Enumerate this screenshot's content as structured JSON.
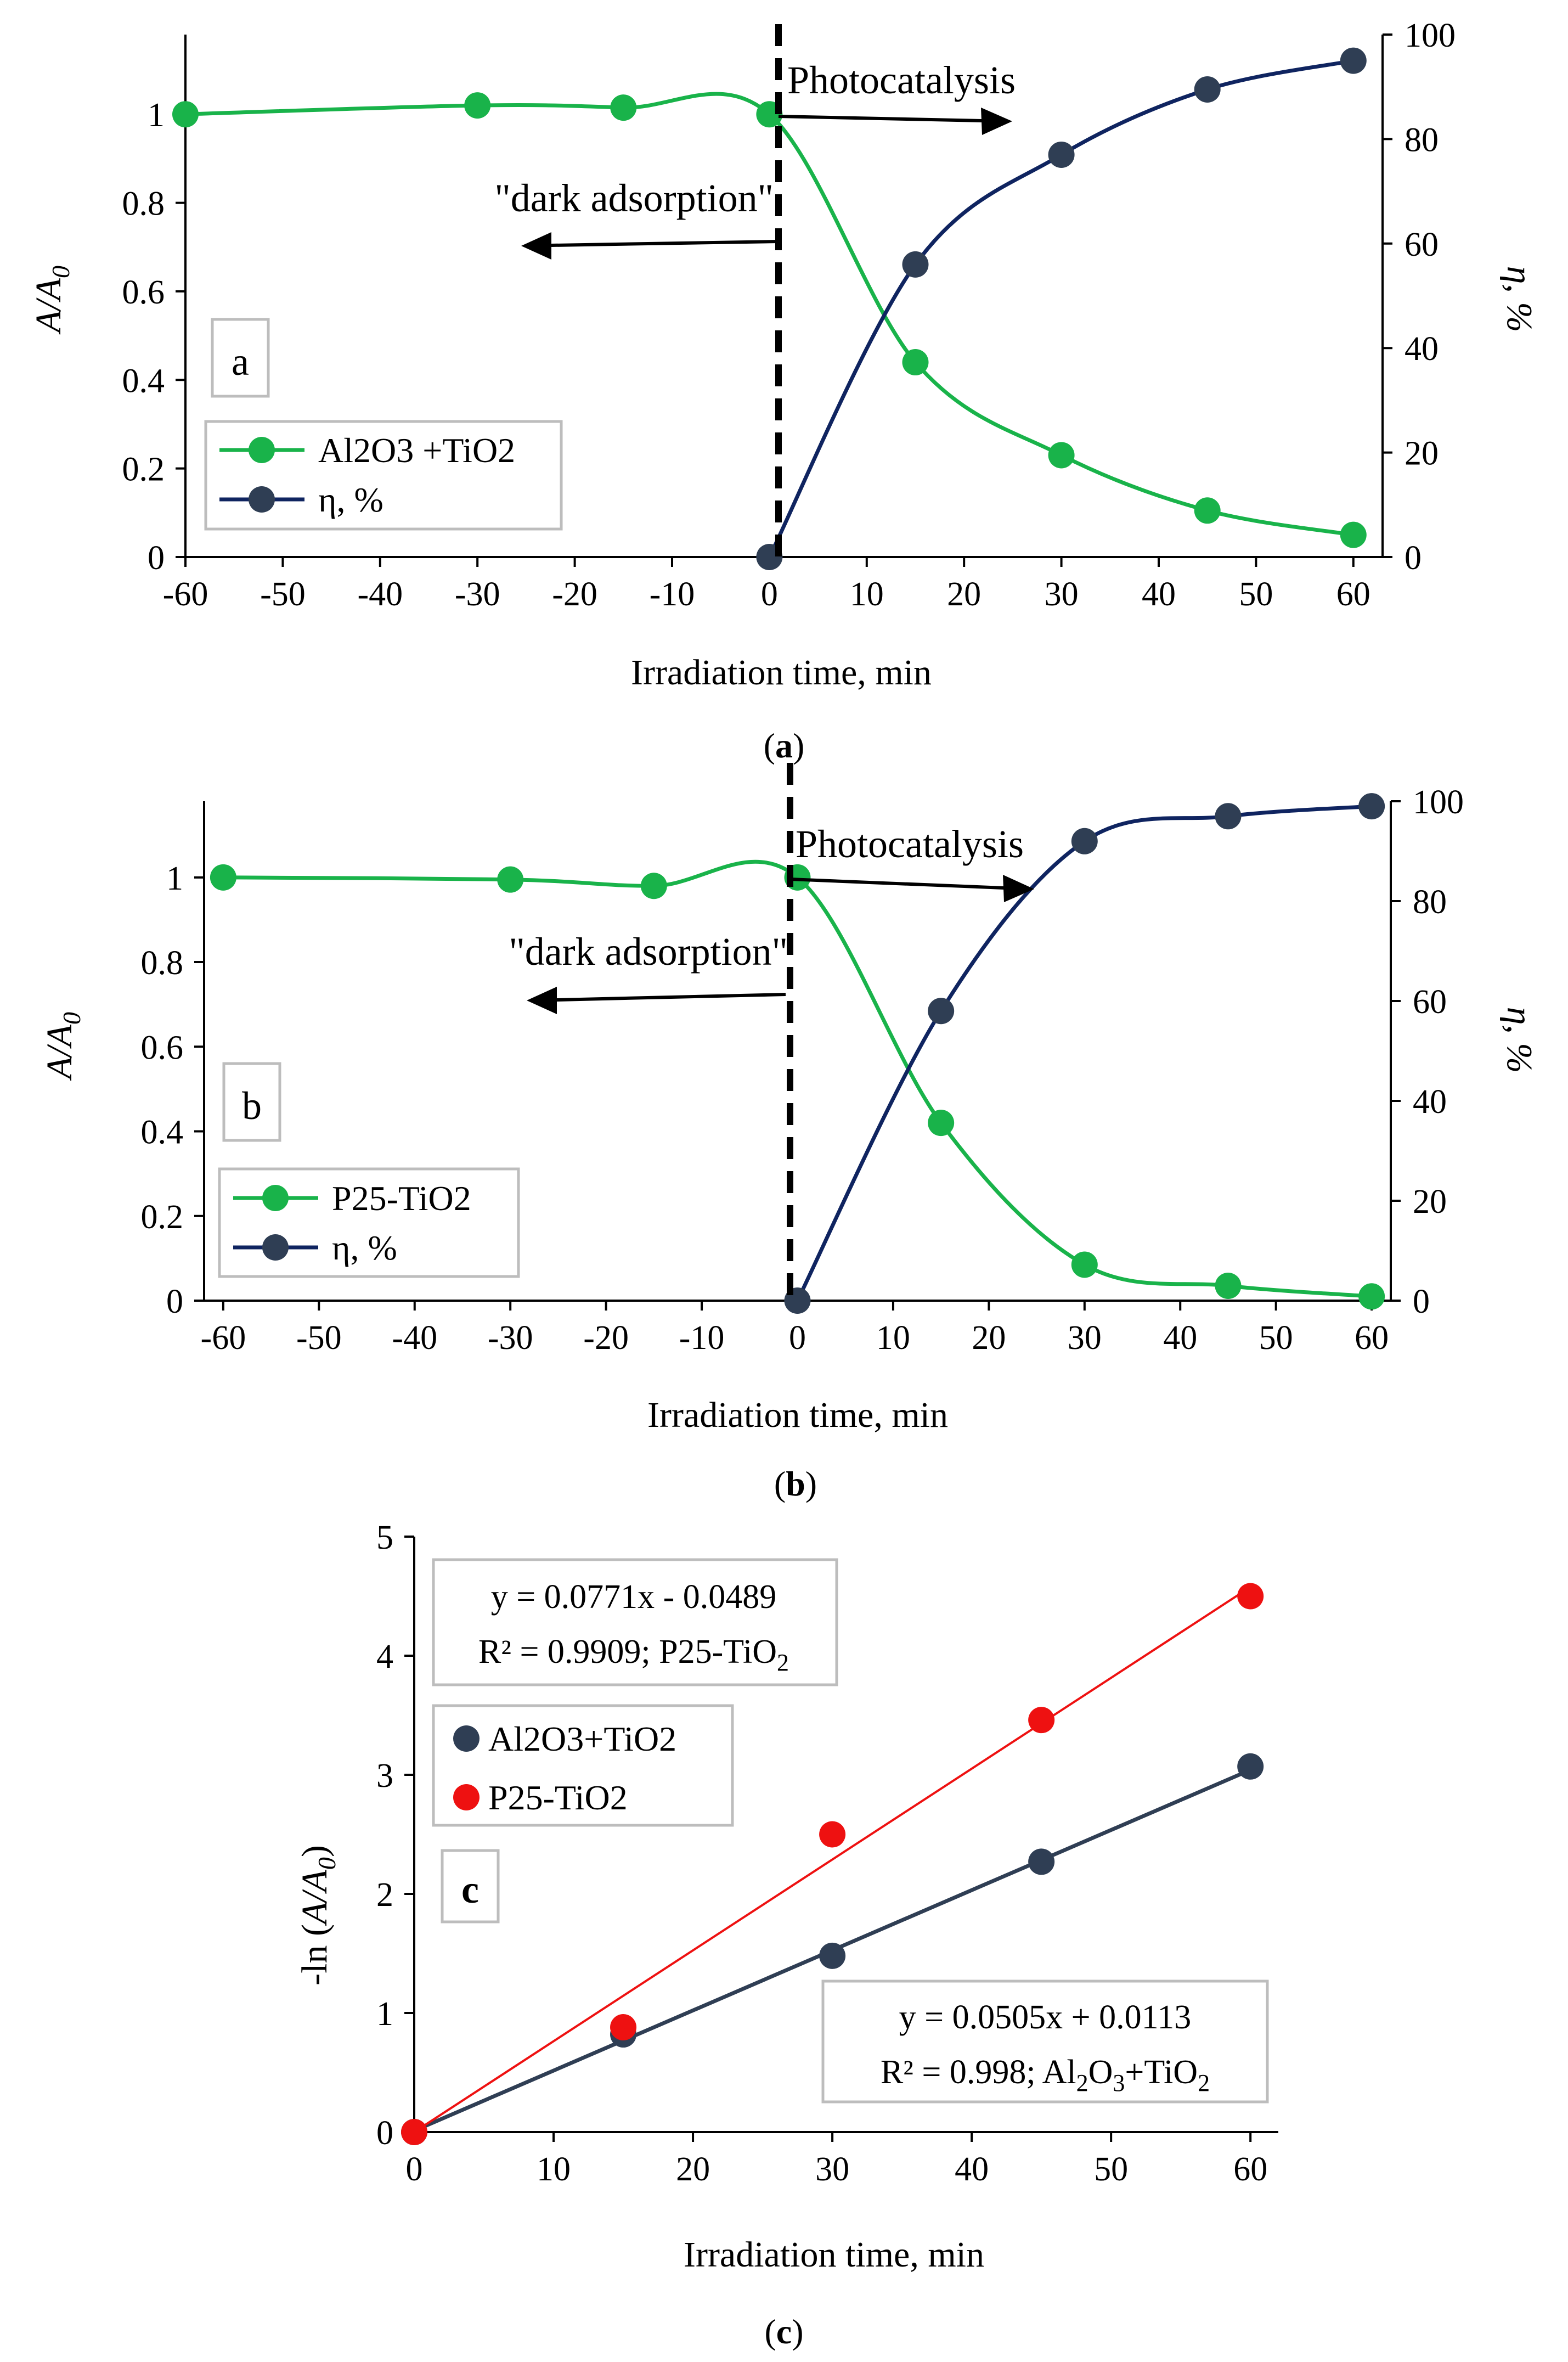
{
  "figure": {
    "captions": [
      {
        "open": "(",
        "letter": "a",
        "close": ")"
      },
      {
        "open": "(",
        "letter": "b",
        "close": ")"
      },
      {
        "open": "(",
        "letter": "c",
        "close": ")"
      }
    ]
  },
  "colors": {
    "green": "#19b34a",
    "navy": "#0f2460",
    "slate": "#2f3e54",
    "red": "#ee1111",
    "axis": "#000000"
  },
  "chart_data": [
    {
      "id": "a",
      "type": "line",
      "panel_label": "a",
      "xlabel": "Irradiation time, min",
      "ylabel": {
        "main": "A/A",
        "sub": "0"
      },
      "y2label": "η, %",
      "xlim": [
        -60,
        63
      ],
      "ylim": [
        0,
        1.18
      ],
      "y2lim": [
        0,
        100
      ],
      "xticks": [
        -60,
        -50,
        -40,
        -30,
        -20,
        -10,
        0,
        10,
        20,
        30,
        40,
        50,
        60
      ],
      "yticks": [
        0,
        0.2,
        0.4,
        0.6,
        0.8,
        1
      ],
      "yticks_labels": [
        "0",
        "0.2",
        "0.4",
        "0.6",
        "0.8",
        "1"
      ],
      "y2ticks": [
        0,
        20,
        40,
        60,
        80,
        100
      ],
      "series": [
        {
          "name": "Al2O3 +TiO2",
          "axis": "left",
          "color": "#19b34a",
          "x": [
            -60,
            -30,
            -15,
            0,
            15,
            30,
            45,
            60
          ],
          "values": [
            1.0,
            1.02,
            1.015,
            1.0,
            0.44,
            0.23,
            0.105,
            0.05
          ]
        },
        {
          "name": "η, %",
          "axis": "right",
          "color": "#0f2460",
          "x": [
            0,
            15,
            30,
            45,
            60
          ],
          "values": [
            0,
            56,
            77,
            89.5,
            95
          ]
        }
      ],
      "annotations": {
        "left_arrow": "\"dark adsorption\"",
        "right_arrow": "Photocatalysis"
      }
    },
    {
      "id": "b",
      "type": "line",
      "panel_label": "b",
      "xlabel": "Irradiation time, min",
      "ylabel": {
        "main": "A/A",
        "sub": "0"
      },
      "y2label": "η, %",
      "xlim": [
        -62,
        62
      ],
      "ylim": [
        0,
        1.18
      ],
      "y2lim": [
        0,
        100
      ],
      "xticks": [
        -60,
        -50,
        -40,
        -30,
        -20,
        -10,
        0,
        10,
        20,
        30,
        40,
        50,
        60
      ],
      "yticks": [
        0,
        0.2,
        0.4,
        0.6,
        0.8,
        1
      ],
      "yticks_labels": [
        "0",
        "0.2",
        "0.4",
        "0.6",
        "0.8",
        "1"
      ],
      "y2ticks": [
        0,
        20,
        40,
        60,
        80,
        100
      ],
      "series": [
        {
          "name": "P25-TiO2",
          "axis": "left",
          "color": "#19b34a",
          "x": [
            -60,
            -30,
            -15,
            0,
            15,
            30,
            45,
            60
          ],
          "values": [
            1.0,
            0.995,
            0.98,
            1.0,
            0.42,
            0.085,
            0.035,
            0.01
          ]
        },
        {
          "name": "η, %",
          "axis": "right",
          "color": "#0f2460",
          "x": [
            0,
            15,
            30,
            45,
            60
          ],
          "values": [
            0,
            58,
            92,
            97,
            99
          ]
        }
      ],
      "annotations": {
        "left_arrow": "\"dark adsorption\"",
        "right_arrow": "Photocatalysis"
      }
    },
    {
      "id": "c",
      "type": "scatter",
      "panel_label": "c",
      "xlabel": "Irradiation time, min",
      "ylabel": {
        "prefix": "-ln (",
        "main": "A/A",
        "sub": "0",
        "suffix": ")"
      },
      "xlim": [
        0,
        62
      ],
      "ylim": [
        0,
        5
      ],
      "xticks": [
        0,
        10,
        20,
        30,
        40,
        50,
        60
      ],
      "yticks": [
        0,
        1,
        2,
        3,
        4,
        5
      ],
      "yticks_labels": [
        "0",
        "1",
        "2",
        "3",
        "4",
        "5"
      ],
      "series": [
        {
          "name": "Al2O3+TiO2",
          "color": "#2f3e54",
          "x": [
            0,
            15,
            30,
            45,
            60
          ],
          "values": [
            0,
            0.82,
            1.48,
            2.27,
            3.07
          ],
          "fit": {
            "slope": 0.0505,
            "intercept": 0.0113
          }
        },
        {
          "name": "P25-TiO2",
          "color": "#ee1111",
          "x": [
            0,
            15,
            30,
            45,
            60
          ],
          "values": [
            0,
            0.88,
            2.5,
            3.46,
            4.5
          ],
          "fit": {
            "slope": 0.0771,
            "intercept": -0.0489
          }
        }
      ],
      "equations": {
        "p25_line1": "y = 0.0771x - 0.0489",
        "p25_line2": "R² = 0.9909; P25-TiO",
        "p25_line2_sub": "2",
        "al_line1": "y = 0.0505x + 0.0113",
        "al_line2a": "R² = 0.998; Al",
        "al_sub1": "2",
        "al_line2b": "O",
        "al_sub2": "3",
        "al_line2c": "+TiO",
        "al_sub3": "2"
      }
    }
  ]
}
